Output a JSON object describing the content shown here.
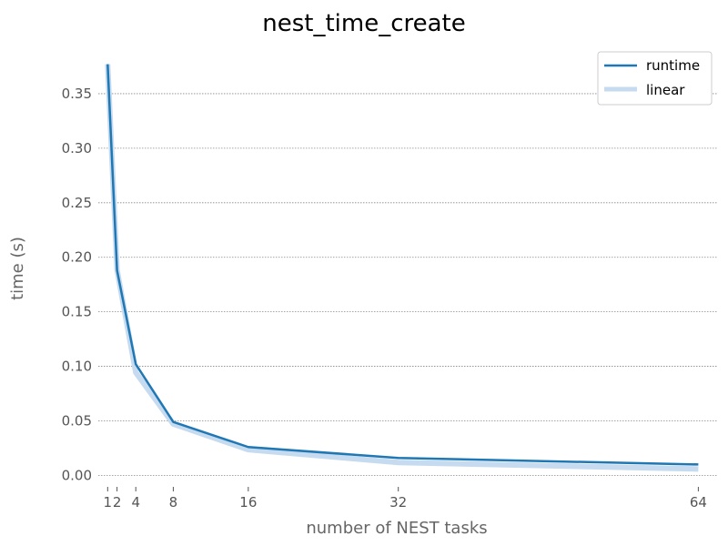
{
  "chart_data": {
    "type": "line",
    "title": "nest_time_create",
    "xlabel": "number of NEST tasks",
    "ylabel": "time (s)",
    "xlim": [
      0,
      66
    ],
    "ylim": [
      -0.008,
      0.39
    ],
    "xticks": [
      1,
      2,
      4,
      8,
      16,
      32,
      64
    ],
    "xtick_labels": [
      "1",
      "2",
      "4",
      "8",
      "16",
      "32",
      "64"
    ],
    "yticks": [
      0.0,
      0.05,
      0.1,
      0.15,
      0.2,
      0.25,
      0.3,
      0.35
    ],
    "ytick_labels": [
      "0.00",
      "0.05",
      "0.10",
      "0.15",
      "0.20",
      "0.25",
      "0.30",
      "0.35"
    ],
    "grid": "y-dotted",
    "legend_position": "top-right",
    "x": [
      1,
      2,
      4,
      8,
      16,
      32,
      64
    ],
    "series": [
      {
        "name": "runtime",
        "color": "#1f77b4",
        "values": [
          0.377,
          0.188,
          0.102,
          0.049,
          0.026,
          0.016,
          0.01
        ]
      },
      {
        "name": "linear",
        "color": "#c6dbef",
        "values": [
          0.377,
          0.1885,
          0.0943,
          0.0471,
          0.0236,
          0.0118,
          0.0059
        ]
      }
    ]
  }
}
